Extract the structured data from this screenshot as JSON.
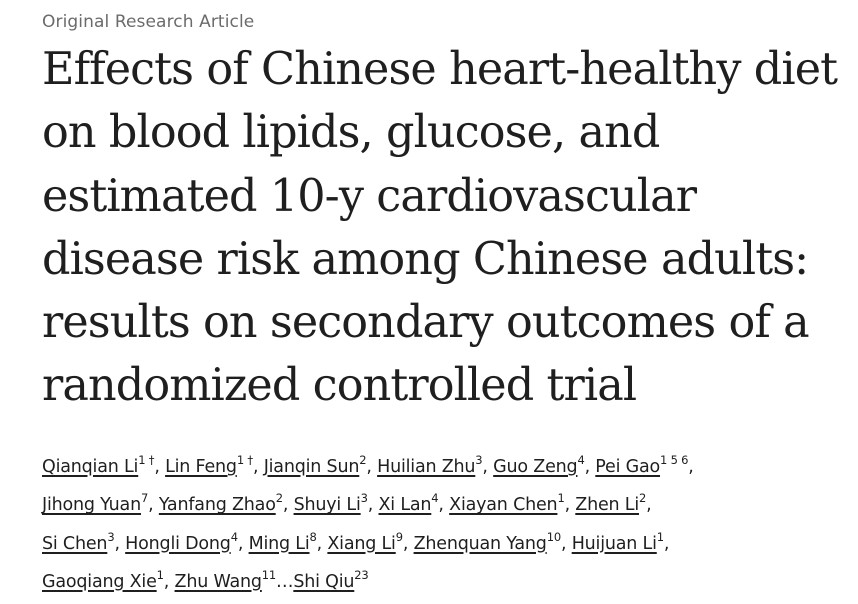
{
  "article_type": "Original Research Article",
  "title_lines": [
    "Effects of Chinese heart-healthy diet",
    "on blood lipids, glucose, and",
    "estimated 10-y cardiovascular",
    "disease risk among Chinese adults:",
    "results on secondary outcomes of a",
    "randomized controlled trial"
  ],
  "authors": [
    {
      "name": "Qianqian Li",
      "sup": "1 †",
      "sep": ", "
    },
    {
      "name": "Lin Feng",
      "sup": "1 †",
      "sep": ", "
    },
    {
      "name": "Jianqin Sun",
      "sup": "2",
      "sep": ", "
    },
    {
      "name": "Huilian Zhu",
      "sup": "3",
      "sep": ", "
    },
    {
      "name": "Guo Zeng",
      "sup": "4",
      "sep": ", "
    },
    {
      "name": "Pei Gao",
      "sup": "1 5 6",
      "sep": ","
    },
    {
      "name": "Jihong Yuan",
      "sup": "7",
      "sep": ", "
    },
    {
      "name": "Yanfang Zhao",
      "sup": "2",
      "sep": ", "
    },
    {
      "name": "Shuyi Li",
      "sup": "3",
      "sep": ", "
    },
    {
      "name": "Xi Lan",
      "sup": "4",
      "sep": ", "
    },
    {
      "name": "Xiayan Chen",
      "sup": "1",
      "sep": ", "
    },
    {
      "name": "Zhen Li",
      "sup": "2",
      "sep": ","
    },
    {
      "name": "Si Chen",
      "sup": "3",
      "sep": ", "
    },
    {
      "name": "Hongli Dong",
      "sup": "4",
      "sep": ", "
    },
    {
      "name": "Ming Li",
      "sup": "8",
      "sep": ", "
    },
    {
      "name": "Xiang Li",
      "sup": "9",
      "sep": ", "
    },
    {
      "name": "Zhenquan Yang",
      "sup": "10",
      "sep": ", "
    },
    {
      "name": "Huijuan Li",
      "sup": "1",
      "sep": ","
    },
    {
      "name": "Gaoqiang Xie",
      "sup": "1",
      "sep": ", "
    },
    {
      "name": "Zhu Wang",
      "sup": "11",
      "sep": "…"
    },
    {
      "name": "Shi Qiu",
      "sup": "23",
      "sep": ""
    }
  ]
}
